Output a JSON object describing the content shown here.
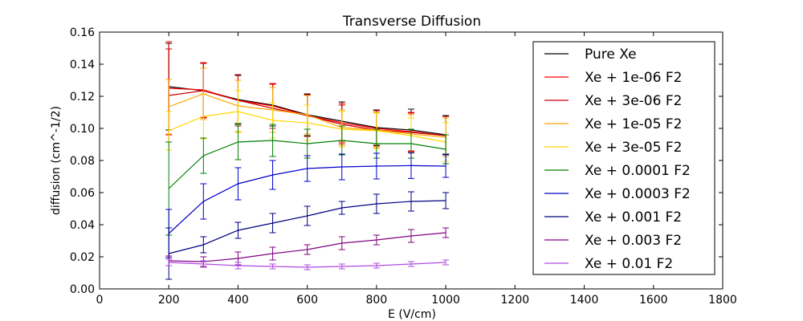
{
  "chart_data": {
    "type": "line",
    "title": "Transverse Diffusion",
    "xlabel": "E (V/cm)",
    "ylabel": "diffusion (cm^-1/2)",
    "xlim": [
      0,
      1800
    ],
    "ylim": [
      0,
      0.16
    ],
    "xticks": [
      "0",
      "200",
      "400",
      "600",
      "800",
      "1000",
      "1200",
      "1400",
      "1600",
      "1800"
    ],
    "yticks": [
      "0.00",
      "0.02",
      "0.04",
      "0.06",
      "0.08",
      "0.10",
      "0.12",
      "0.14",
      "0.16"
    ],
    "grid": false,
    "legend_position": "right",
    "x": [
      200,
      300,
      400,
      500,
      600,
      700,
      800,
      900,
      1000
    ],
    "series": [
      {
        "name": "Pure Xe",
        "color": "#000000",
        "values": [
          0.126,
          0.1235,
          0.118,
          0.1145,
          0.1085,
          0.1045,
          0.1005,
          0.099,
          0.096
        ],
        "errors": [
          0.027,
          0.017,
          0.015,
          0.013,
          0.013,
          0.012,
          0.011,
          0.013,
          0.012
        ]
      },
      {
        "name": "Xe + 1e-06 F2",
        "color": "#ff0000",
        "values": [
          0.125,
          0.124,
          0.1175,
          0.114,
          0.108,
          0.1035,
          0.1,
          0.098,
          0.0955
        ],
        "errors": [
          0.029,
          0.017,
          0.016,
          0.014,
          0.013,
          0.012,
          0.011,
          0.012,
          0.012
        ]
      },
      {
        "name": "Xe + 3e-06 F2",
        "color": "#cc0000",
        "values": [
          0.1205,
          0.1235,
          0.1175,
          0.1125,
          0.108,
          0.1025,
          0.099,
          0.0975,
          0.0955
        ],
        "errors": [
          0.029,
          0.017,
          0.016,
          0.015,
          0.013,
          0.012,
          0.011,
          0.012,
          0.012
        ]
      },
      {
        "name": "Xe + 1e-05 F2",
        "color": "#ffa500",
        "values": [
          0.1135,
          0.1215,
          0.114,
          0.1115,
          0.1085,
          0.1005,
          0.099,
          0.0965,
          0.0945
        ],
        "errors": [
          0.017,
          0.016,
          0.016,
          0.014,
          0.012,
          0.011,
          0.011,
          0.012,
          0.012
        ]
      },
      {
        "name": "Xe + 3e-05 F2",
        "color": "#ffd700",
        "values": [
          0.0985,
          0.1075,
          0.1105,
          0.105,
          0.1035,
          0.0995,
          0.0985,
          0.0955,
          0.0915
        ],
        "errors": [
          0.012,
          0.014,
          0.013,
          0.011,
          0.011,
          0.011,
          0.011,
          0.011,
          0.012
        ]
      },
      {
        "name": "Xe + 0.0001 F2",
        "color": "#008000",
        "values": [
          0.0625,
          0.083,
          0.0915,
          0.0925,
          0.0905,
          0.0925,
          0.0905,
          0.0905,
          0.087
        ],
        "errors": [
          0.029,
          0.011,
          0.011,
          0.01,
          0.009,
          0.009,
          0.009,
          0.009,
          0.009
        ]
      },
      {
        "name": "Xe + 0.0003 F2",
        "color": "#0000cc",
        "values": [
          0.0345,
          0.0545,
          0.0655,
          0.071,
          0.075,
          0.076,
          0.0765,
          0.0768,
          0.0765
        ],
        "errors": [
          0.015,
          0.011,
          0.01,
          0.009,
          0.008,
          0.008,
          0.008,
          0.008,
          0.007
        ]
      },
      {
        "name": "Xe + 0.001 F2",
        "color": "#000080",
        "values": [
          0.022,
          0.0275,
          0.0365,
          0.041,
          0.0455,
          0.0505,
          0.053,
          0.0545,
          0.055
        ],
        "errors": [
          0.016,
          0.005,
          0.005,
          0.006,
          0.006,
          0.004,
          0.006,
          0.006,
          0.005
        ]
      },
      {
        "name": "Xe + 0.003 F2",
        "color": "#800080",
        "values": [
          0.0175,
          0.017,
          0.019,
          0.022,
          0.0245,
          0.0285,
          0.0305,
          0.033,
          0.035
        ],
        "errors": [
          0.003,
          0.003,
          0.004,
          0.004,
          0.003,
          0.004,
          0.003,
          0.004,
          0.003
        ]
      },
      {
        "name": "Xe + 0.01 F2",
        "color": "#b04ae0",
        "values": [
          0.0165,
          0.0155,
          0.0145,
          0.014,
          0.0135,
          0.014,
          0.0145,
          0.0155,
          0.0165
        ],
        "errors": [
          0.002,
          0.002,
          0.002,
          0.0015,
          0.0015,
          0.0015,
          0.0015,
          0.0015,
          0.0015
        ]
      }
    ]
  }
}
